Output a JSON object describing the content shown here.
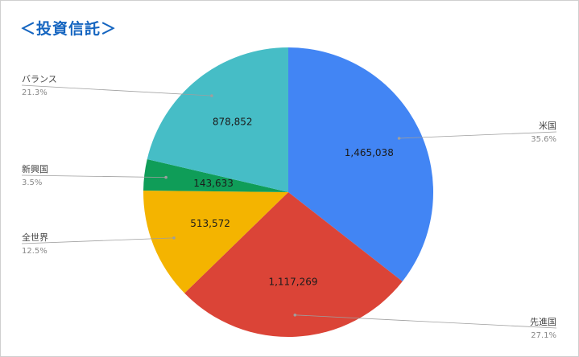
{
  "page": {
    "title": "＜投資信託＞",
    "title_color": "#1565c0"
  },
  "chart_data": {
    "type": "pie",
    "title": "＜投資信託＞",
    "start_angle_deg": 0,
    "direction": "clockwise",
    "slices": [
      {
        "name": "米国",
        "value": 1465038,
        "value_label": "1,465,038",
        "percent_label": "35.6%",
        "color": "#4285f4"
      },
      {
        "name": "先進国",
        "value": 1117269,
        "value_label": "1,117,269",
        "percent_label": "27.1%",
        "color": "#db4437"
      },
      {
        "name": "全世界",
        "value": 513572,
        "value_label": "513,572",
        "percent_label": "12.5%",
        "color": "#f4b400"
      },
      {
        "name": "新興国",
        "value": 143633,
        "value_label": "143,633",
        "percent_label": "3.5%",
        "color": "#0f9d58"
      },
      {
        "name": "バランス",
        "value": 878852,
        "value_label": "878,852",
        "percent_label": "21.3%",
        "color": "#46bdc6"
      }
    ],
    "legend_style": "callout-lines",
    "leader_line_color": "#9e9e9e"
  }
}
